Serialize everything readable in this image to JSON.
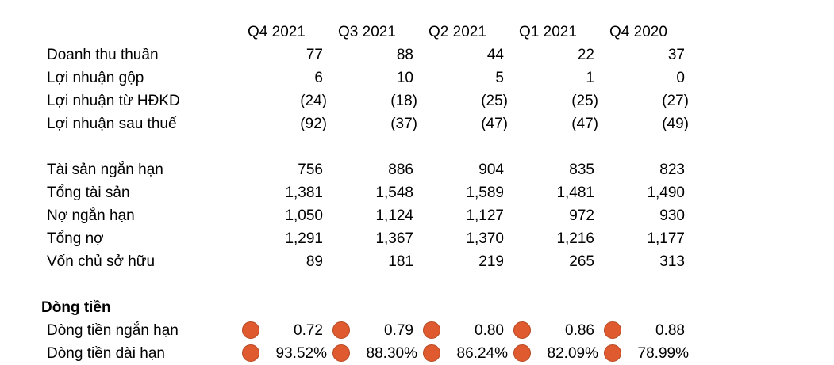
{
  "header": [
    "Q4 2021",
    "Q3 2021",
    "Q2 2021",
    "Q1 2021",
    "Q4 2020"
  ],
  "income": [
    {
      "label": "Doanh thu thuần",
      "values": [
        "77",
        "88",
        "44",
        "22",
        "37"
      ]
    },
    {
      "label": "Lợi nhuận gộp",
      "values": [
        "6",
        "10",
        "5",
        "1",
        "0"
      ]
    },
    {
      "label": "Lợi nhuận từ HĐKD",
      "values": [
        "(24)",
        "(18)",
        "(25)",
        "(25)",
        "(27)"
      ]
    },
    {
      "label": "Lợi nhuận sau thuế",
      "values": [
        "(92)",
        "(37)",
        "(47)",
        "(47)",
        "(49)"
      ]
    }
  ],
  "balance": [
    {
      "label": "Tài sản ngắn hạn",
      "values": [
        "756",
        "886",
        "904",
        "835",
        "823"
      ]
    },
    {
      "label": "Tổng tài sản",
      "values": [
        "1,381",
        "1,548",
        "1,589",
        "1,481",
        "1,490"
      ]
    },
    {
      "label": "Nợ ngắn hạn",
      "values": [
        "1,050",
        "1,124",
        "1,127",
        "972",
        "930"
      ]
    },
    {
      "label": "Tổng nợ",
      "values": [
        "1,291",
        "1,367",
        "1,370",
        "1,216",
        "1,177"
      ]
    },
    {
      "label": "Vốn chủ sở hữu",
      "values": [
        "89",
        "181",
        "219",
        "265",
        "313"
      ]
    }
  ],
  "cashflow": {
    "title": "Dòng tiền",
    "indicator_color": "#e05a2f",
    "rows": [
      {
        "label": "Dòng tiền ngắn hạn",
        "values": [
          "0.72",
          "0.79",
          "0.80",
          "0.86",
          "0.88"
        ]
      },
      {
        "label": "Dòng tiền dài hạn",
        "values": [
          "93.52%",
          "88.30%",
          "86.24%",
          "82.09%",
          "78.99%"
        ]
      }
    ]
  }
}
